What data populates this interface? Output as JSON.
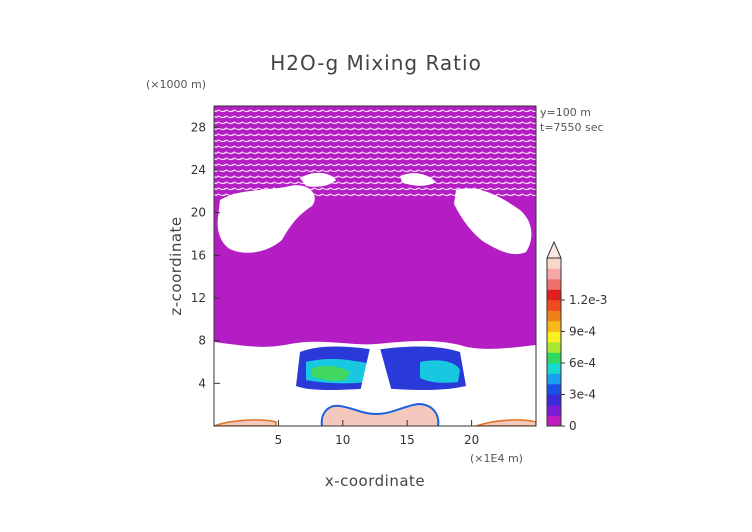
{
  "chart_data": {
    "type": "heatmap",
    "title": "H2O-g Mixing Ratio",
    "xlabel": "x-coordinate",
    "ylabel": "z-coordinate",
    "x_unit": "(×1E4 m)",
    "y_unit": "(×1000 m)",
    "xlim": [
      0,
      25
    ],
    "ylim": [
      0,
      30
    ],
    "xticks": [
      5,
      10,
      15,
      20
    ],
    "yticks": [
      4,
      8,
      12,
      16,
      20,
      24,
      28
    ],
    "annotations": [
      "y=100 m",
      "t=7550 sec"
    ],
    "colorbar": {
      "labels": [
        "0",
        "3e-4",
        "6e-4",
        "9e-4",
        "1.2e-3"
      ],
      "colors": [
        "#c01cc0",
        "#7a1cd6",
        "#3a2ad8",
        "#1a4fe8",
        "#1aa0f0",
        "#18d8d0",
        "#30d860",
        "#a8e830",
        "#f8f020",
        "#f8b818",
        "#f08018",
        "#f04a20",
        "#e02020",
        "#f07070",
        "#f4a8a8",
        "#f8d8cc"
      ],
      "extend": "max"
    },
    "grid": false,
    "legend_placement": "right"
  }
}
